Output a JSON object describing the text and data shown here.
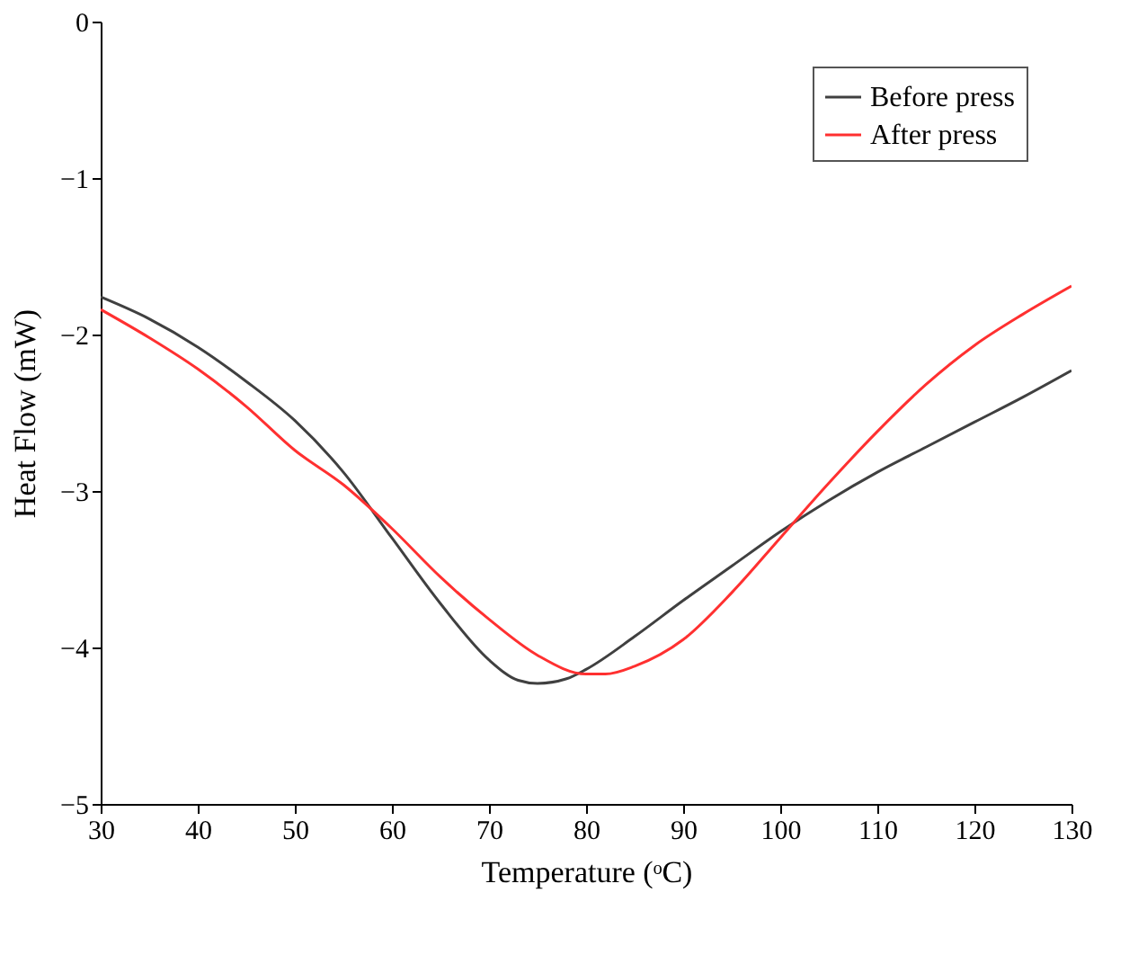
{
  "chart_data": {
    "type": "line",
    "xlabel": "Temperature (ᵒC)",
    "ylabel": "Heat Flow (mW)",
    "xlim": [
      30,
      130
    ],
    "xticks": [
      30,
      40,
      50,
      60,
      70,
      80,
      90,
      100,
      110,
      120,
      130
    ],
    "ylim": [
      -5,
      0
    ],
    "yticks": [
      -5,
      -4,
      -3,
      -2,
      -1,
      0
    ],
    "grid": false,
    "legend": "top right",
    "marker": "none",
    "line_style": "solid",
    "series": [
      {
        "name": "Before press",
        "color": "#404040",
        "x": [
          30,
          35,
          40,
          45,
          50,
          55,
          60,
          65,
          70,
          73,
          75,
          78,
          80,
          85,
          90,
          95,
          100,
          105,
          110,
          115,
          120,
          125,
          130
        ],
        "values": [
          -1.76,
          -1.9,
          -2.08,
          -2.3,
          -2.55,
          -2.88,
          -3.3,
          -3.72,
          -4.08,
          -4.21,
          -4.23,
          -4.2,
          -4.14,
          -3.93,
          -3.7,
          -3.48,
          -3.26,
          -3.06,
          -2.88,
          -2.72,
          -2.56,
          -2.4,
          -2.23
        ]
      },
      {
        "name": "After press",
        "color": "#ff3030",
        "x": [
          30,
          35,
          40,
          45,
          50,
          55,
          60,
          65,
          70,
          75,
          80,
          82,
          85,
          90,
          95,
          100,
          105,
          110,
          115,
          120,
          125,
          130
        ],
        "values": [
          -1.84,
          -2.02,
          -2.22,
          -2.46,
          -2.74,
          -2.96,
          -3.24,
          -3.55,
          -3.82,
          -4.05,
          -4.17,
          -4.17,
          -4.12,
          -3.95,
          -3.65,
          -3.3,
          -2.95,
          -2.62,
          -2.32,
          -2.07,
          -1.87,
          -1.69
        ]
      }
    ]
  }
}
